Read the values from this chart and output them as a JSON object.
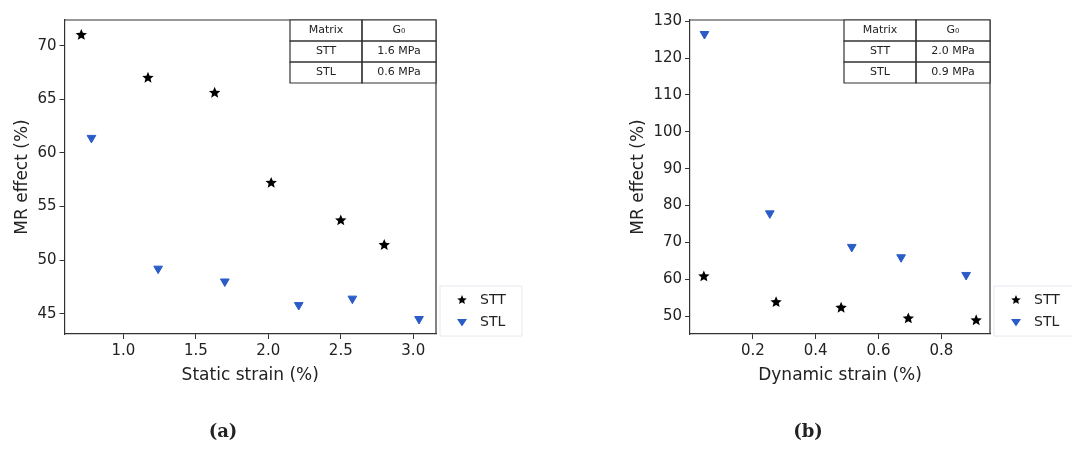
{
  "chart_data": [
    {
      "type": "scatter",
      "title": "(a)",
      "xlabel": "Static strain (%)",
      "ylabel": "MR effect (%)",
      "xlim": [
        0.594,
        3.157
      ],
      "xticks": [
        {
          "value": 1,
          "label": "1.0"
        },
        {
          "value": 1.5,
          "label": "1.5"
        },
        {
          "value": 2,
          "label": "2.0"
        },
        {
          "value": 2.5,
          "label": "2.5"
        },
        {
          "value": 3,
          "label": "3.0"
        }
      ],
      "ylim": [
        43.1,
        72.4
      ],
      "yticks": [
        45,
        50,
        55,
        60,
        65,
        70
      ],
      "grid": false,
      "legend": "bottom right",
      "annotations": [
        "Matrix",
        "G₀",
        "STT",
        "1.6 MPa",
        "STL",
        "0.6 MPa"
      ],
      "series": [
        {
          "name": "STT",
          "color": "#000000",
          "marker": "star",
          "x": [
            0.71,
            1.17,
            1.63,
            2.02,
            2.5,
            2.8
          ],
          "values": [
            71.0,
            67.0,
            65.6,
            57.2,
            53.7,
            51.4
          ]
        },
        {
          "name": "STL",
          "color": "#2a5cc8",
          "marker": "triangle",
          "x": [
            0.78,
            1.24,
            1.7,
            2.21,
            2.58,
            3.04
          ],
          "values": [
            61.4,
            49.2,
            48.0,
            45.8,
            46.4,
            44.5
          ]
        }
      ]
    },
    {
      "type": "scatter",
      "title": "(b)",
      "xlabel": "Dynamic strain (%)",
      "ylabel": "MR effect (%)",
      "xlim": [
        0,
        0.955
      ],
      "xticks": [
        0.2,
        0.4,
        0.6,
        0.8
      ],
      "ylim": [
        45.2,
        130.3
      ],
      "yticks": [
        50,
        60,
        70,
        80,
        90,
        100,
        110,
        120,
        130
      ],
      "grid": false,
      "legend": "bottom right",
      "annotations": [
        "Matrix",
        "G₀",
        "STT",
        "2.0 MPa",
        "STL",
        "0.9 MPa"
      ],
      "series": [
        {
          "name": "STT",
          "color": "#000000",
          "marker": "star",
          "x": [
            0.044,
            0.274,
            0.481,
            0.695,
            0.911
          ],
          "values": [
            60.8,
            53.8,
            52.3,
            49.4,
            48.9
          ]
        },
        {
          "name": "STL",
          "color": "#2a5cc8",
          "marker": "triangle",
          "x": [
            0.046,
            0.254,
            0.515,
            0.672,
            0.879
          ],
          "values": [
            126.5,
            77.9,
            68.8,
            66.0,
            61.2
          ]
        }
      ]
    }
  ]
}
